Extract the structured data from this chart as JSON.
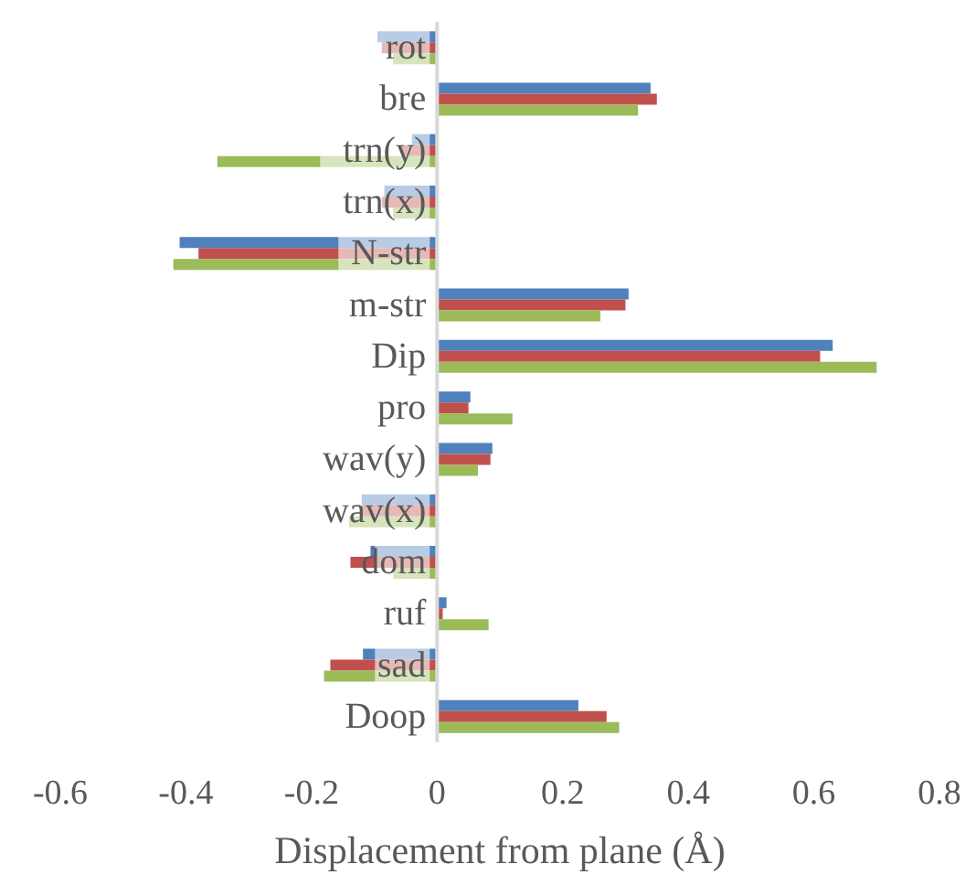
{
  "chart_data": {
    "type": "bar",
    "orientation": "horizontal",
    "xlabel": "Displacement from plane (Å)",
    "categories": [
      "rot",
      "bre",
      "trn(y)",
      "trn(x)",
      "N-str",
      "m-str",
      "Dip",
      "pro",
      "wav(y)",
      "wav(x)",
      "dom",
      "ruf",
      "sad",
      "Doop"
    ],
    "series": [
      {
        "color": "#4f81bd",
        "values": [
          -0.095,
          0.34,
          -0.04,
          -0.084,
          -0.41,
          0.305,
          0.63,
          0.053,
          0.088,
          -0.12,
          -0.106,
          0.015,
          -0.118,
          0.225
        ]
      },
      {
        "color": "#c0504d",
        "values": [
          -0.088,
          0.35,
          -0.057,
          -0.088,
          -0.38,
          0.3,
          0.61,
          0.05,
          0.085,
          -0.123,
          -0.138,
          0.009,
          -0.17,
          0.27
        ]
      },
      {
        "color": "#9bbb59",
        "values": [
          -0.07,
          0.32,
          -0.35,
          -0.07,
          -0.42,
          0.26,
          0.7,
          0.12,
          0.065,
          -0.14,
          -0.07,
          0.082,
          -0.18,
          0.29
        ]
      }
    ],
    "xlim": [
      -0.6,
      0.8
    ],
    "xticks": [
      -0.6,
      -0.4,
      -0.2,
      0,
      0.2,
      0.4,
      0.6,
      0.8
    ],
    "grid": false,
    "legend": false
  }
}
